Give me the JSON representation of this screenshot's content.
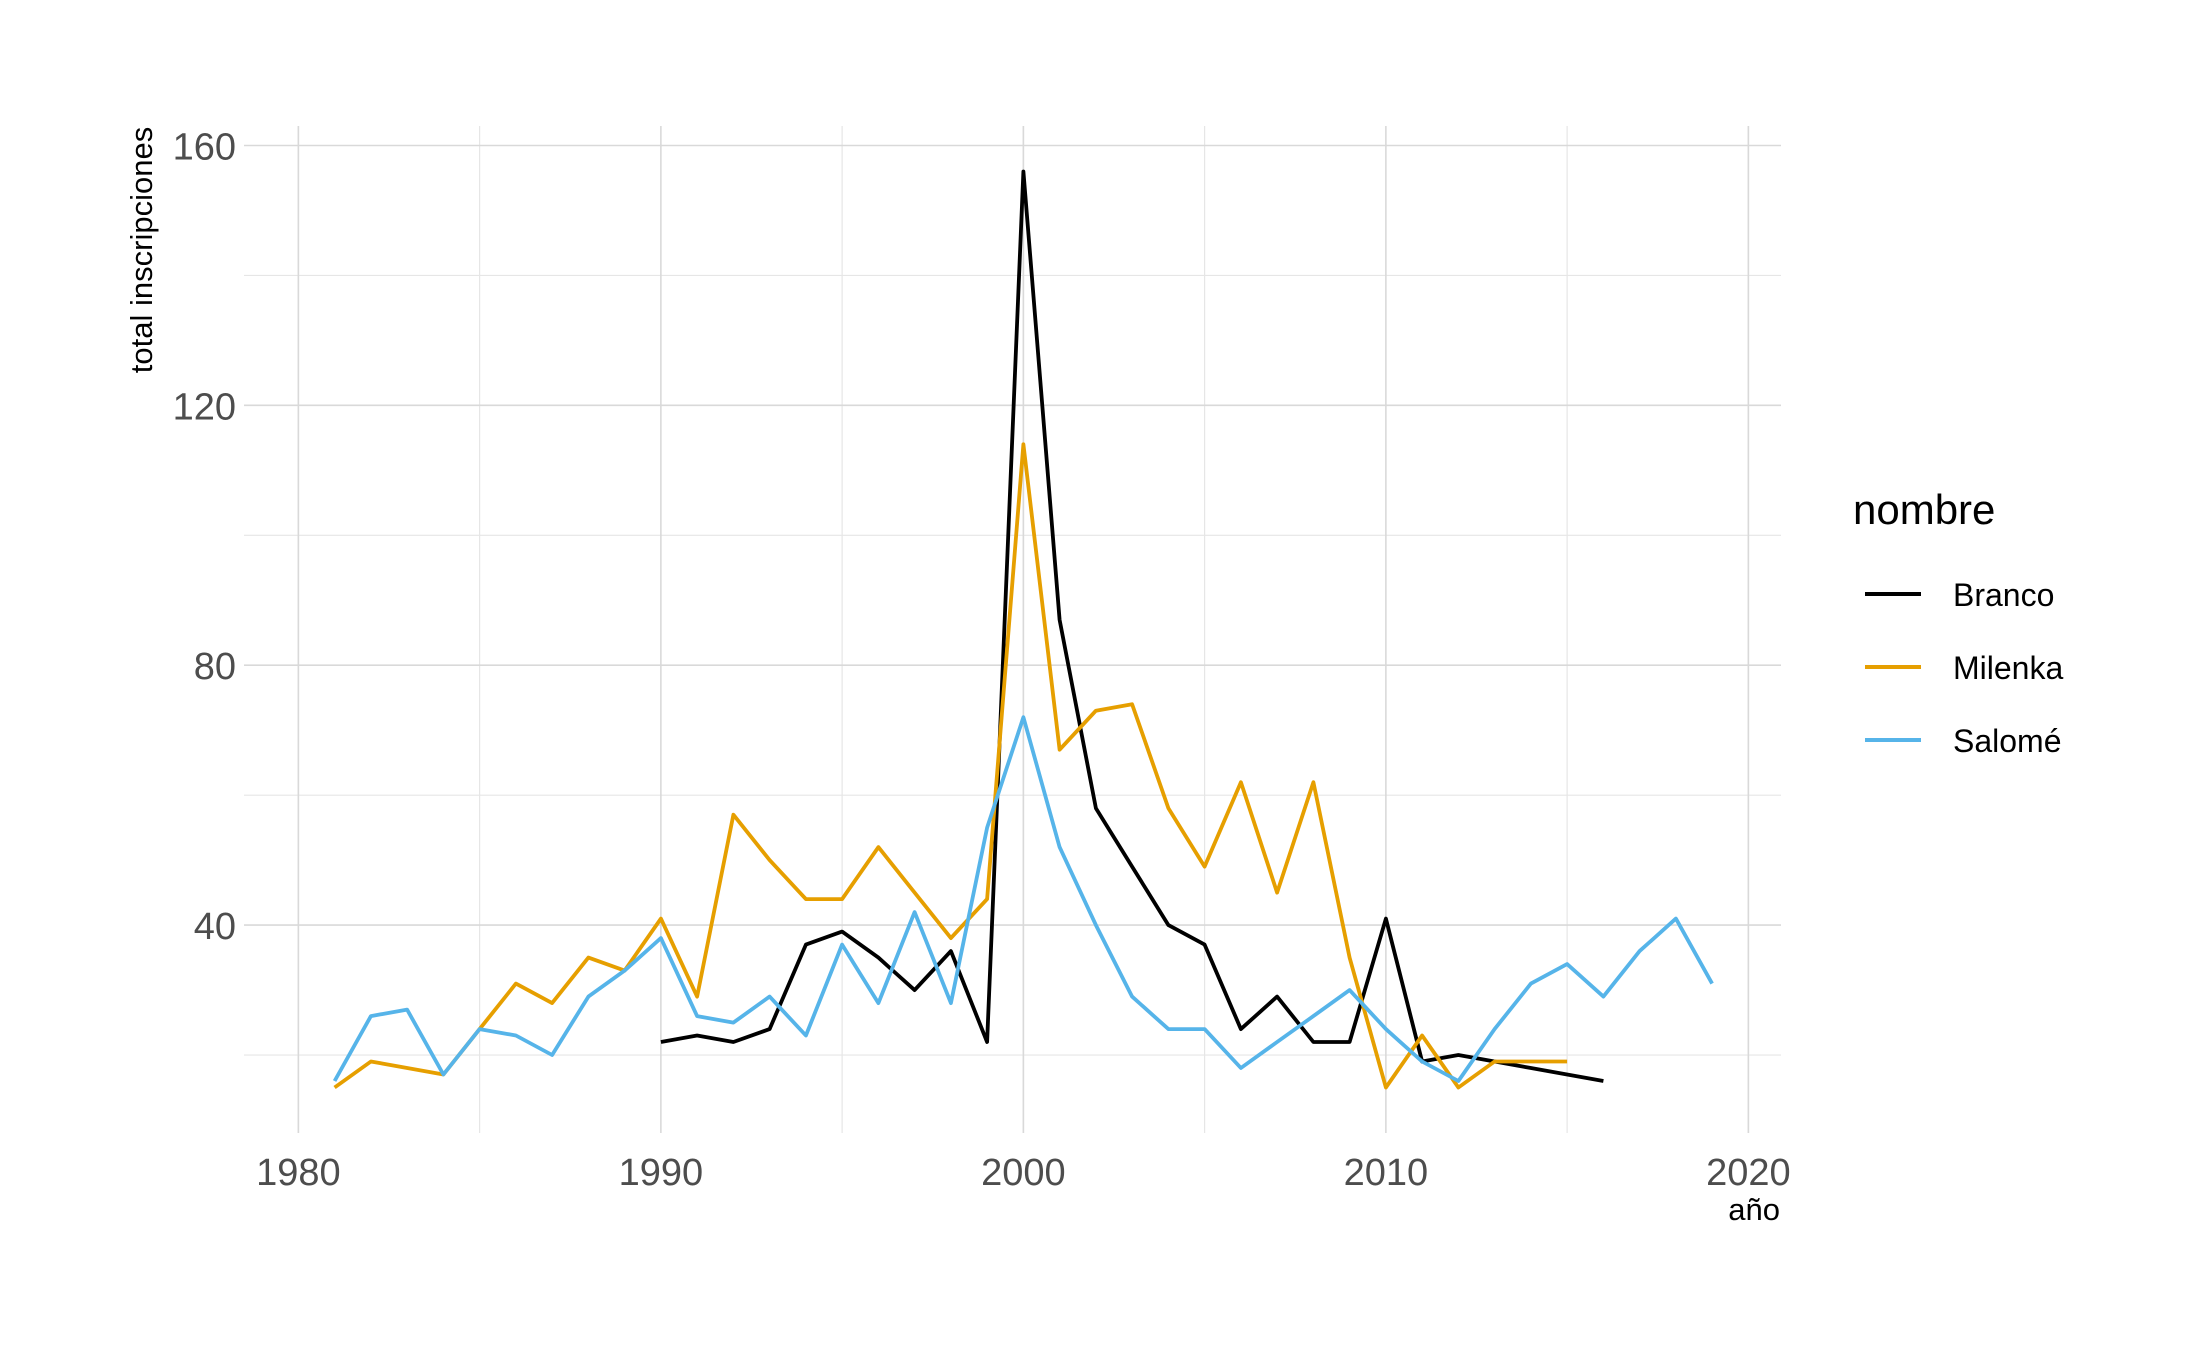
{
  "chart_data": {
    "type": "line",
    "xlabel": "año",
    "ylabel": "total inscripciones",
    "xlim": [
      1978.5,
      2020.9
    ],
    "ylim": [
      8,
      163
    ],
    "x_ticks": [
      1980,
      1990,
      2000,
      2010,
      2020
    ],
    "y_ticks": [
      40,
      80,
      120,
      160
    ],
    "x_minor": [
      1985,
      1995,
      2005,
      2015
    ],
    "y_minor": [
      20,
      60,
      100,
      140
    ],
    "grid": true,
    "legend": {
      "title": "nombre",
      "position": "right"
    },
    "series": [
      {
        "name": "Branco",
        "color": "#000000",
        "x": [
          1990,
          1991,
          1992,
          1993,
          1994,
          1995,
          1996,
          1997,
          1998,
          1999,
          2000,
          2001,
          2002,
          2003,
          2004,
          2005,
          2006,
          2007,
          2008,
          2009,
          2010,
          2011,
          2012,
          2013,
          2014,
          2015,
          2016
        ],
        "y": [
          22,
          23,
          22,
          24,
          37,
          39,
          35,
          30,
          36,
          22,
          156,
          87,
          58,
          49,
          40,
          37,
          24,
          29,
          22,
          22,
          41,
          19,
          20,
          19,
          18,
          17,
          16
        ]
      },
      {
        "name": "Milenka",
        "color": "#E69F00",
        "x": [
          1981,
          1982,
          1984,
          1985,
          1986,
          1987,
          1988,
          1989,
          1990,
          1991,
          1992,
          1993,
          1994,
          1995,
          1996,
          1997,
          1998,
          1999,
          2000,
          2001,
          2002,
          2003,
          2004,
          2005,
          2006,
          2007,
          2008,
          2009,
          2010,
          2011,
          2012,
          2013,
          2014,
          2015
        ],
        "y": [
          15,
          19,
          17,
          24,
          31,
          28,
          35,
          33,
          41,
          29,
          57,
          50,
          44,
          44,
          52,
          45,
          38,
          44,
          114,
          67,
          73,
          74,
          58,
          49,
          62,
          45,
          62,
          35,
          15,
          23,
          15,
          19,
          19,
          19
        ]
      },
      {
        "name": "Salomé",
        "color": "#56B4E9",
        "x": [
          1981,
          1982,
          1983,
          1984,
          1985,
          1986,
          1987,
          1988,
          1989,
          1990,
          1991,
          1992,
          1993,
          1994,
          1995,
          1996,
          1997,
          1998,
          1999,
          2000,
          2001,
          2002,
          2003,
          2004,
          2005,
          2006,
          2007,
          2008,
          2009,
          2010,
          2011,
          2012,
          2013,
          2014,
          2015,
          2016,
          2017,
          2018,
          2019
        ],
        "y": [
          16,
          26,
          27,
          17,
          24,
          23,
          20,
          29,
          33,
          38,
          26,
          25,
          29,
          23,
          37,
          28,
          42,
          28,
          55,
          72,
          52,
          40,
          29,
          24,
          24,
          18,
          22,
          26,
          30,
          24,
          19,
          16,
          24,
          31,
          34,
          29,
          36,
          41,
          31
        ]
      }
    ]
  }
}
